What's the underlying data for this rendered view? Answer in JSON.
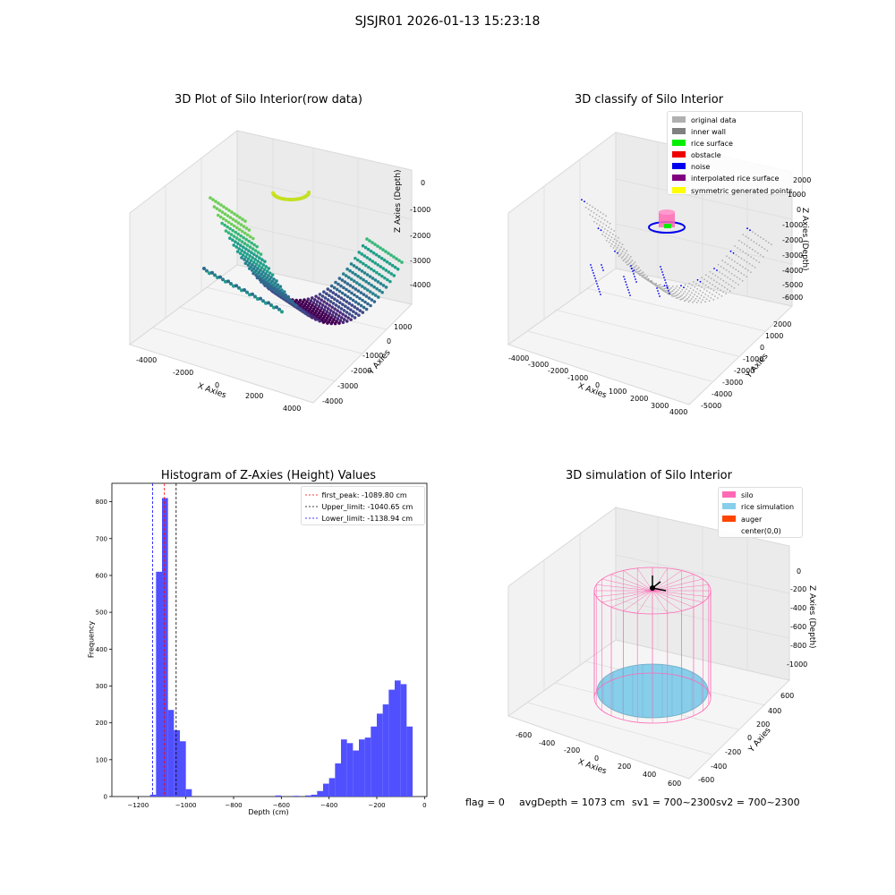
{
  "figure": {
    "suptitle": "SJSJR01 2026-01-13 15:23:18",
    "status": {
      "flag": "flag = 0",
      "avg": "avgDepth = 1073 cm",
      "sv1": "sv1 = 700~2300",
      "sv2": "sv2 = 700~2300"
    }
  },
  "chart_data": [
    {
      "type": "scatter3d",
      "title": "3D Plot of Silo Interior(row data)",
      "xlabel": "X Axies",
      "ylabel": "Y Axies",
      "zlabel": "Z Axies (Depth)",
      "x_ticks": [
        "-4000",
        "-2000",
        "0",
        "2000",
        "4000"
      ],
      "y_ticks": [
        "1000",
        "0",
        "-1000",
        "-2000",
        "-3000",
        "-4000"
      ],
      "z_ticks": [
        "0",
        "-1000",
        "-2000",
        "-3000",
        "-4000"
      ],
      "colormap": "viridis"
    },
    {
      "type": "scatter3d",
      "title": "3D classify of Silo Interior",
      "xlabel": "X Axies",
      "ylabel": "Y Axies",
      "zlabel": "Z Axies (Depth)",
      "x_ticks": [
        "-4000",
        "-3000",
        "-2000",
        "-1000",
        "0",
        "1000",
        "2000",
        "3000",
        "4000"
      ],
      "y_ticks": [
        "2000",
        "1000",
        "0",
        "-1000",
        "-2000",
        "-3000",
        "-4000",
        "-5000"
      ],
      "z_ticks": [
        "2000",
        "1000",
        "0",
        "-1000",
        "-2000",
        "-3000",
        "-4000",
        "-5000",
        "-6000"
      ],
      "legend": [
        {
          "label": "original data",
          "color": "#b0b0b0"
        },
        {
          "label": "inner wall",
          "color": "#808080"
        },
        {
          "label": "rice surface",
          "color": "#00ee00"
        },
        {
          "label": "obstacle",
          "color": "#ee0000"
        },
        {
          "label": "noise",
          "color": "#0000ee"
        },
        {
          "label": "interpolated rice surface",
          "color": "#800080"
        },
        {
          "label": "symmetric generated points",
          "color": "#ffff00"
        }
      ],
      "legend_position": "upper right"
    },
    {
      "type": "histogram",
      "title": "Histogram of Z-Axies (Height) Values",
      "xlabel": "Depth (cm)",
      "ylabel": "Frequency",
      "xlim": [
        -1310,
        10
      ],
      "ylim": [
        0,
        850
      ],
      "x_ticks": [
        -1200,
        -1000,
        -800,
        -600,
        -400,
        -200,
        0
      ],
      "y_ticks": [
        0,
        100,
        200,
        300,
        400,
        500,
        600,
        700,
        800
      ],
      "bin_width": 25,
      "bar_color": "#5050ff",
      "bins": [
        {
          "x0": -1150,
          "count": 5
        },
        {
          "x0": -1125,
          "count": 610
        },
        {
          "x0": -1100,
          "count": 810
        },
        {
          "x0": -1075,
          "count": 235
        },
        {
          "x0": -1050,
          "count": 180
        },
        {
          "x0": -1025,
          "count": 150
        },
        {
          "x0": -1000,
          "count": 20
        },
        {
          "x0": -625,
          "count": 3
        },
        {
          "x0": -550,
          "count": 2
        },
        {
          "x0": -500,
          "count": 3
        },
        {
          "x0": -475,
          "count": 5
        },
        {
          "x0": -450,
          "count": 15
        },
        {
          "x0": -425,
          "count": 35
        },
        {
          "x0": -400,
          "count": 50
        },
        {
          "x0": -375,
          "count": 90
        },
        {
          "x0": -350,
          "count": 155
        },
        {
          "x0": -325,
          "count": 145
        },
        {
          "x0": -300,
          "count": 125
        },
        {
          "x0": -275,
          "count": 155
        },
        {
          "x0": -250,
          "count": 160
        },
        {
          "x0": -225,
          "count": 190
        },
        {
          "x0": -200,
          "count": 225
        },
        {
          "x0": -175,
          "count": 250
        },
        {
          "x0": -150,
          "count": 290
        },
        {
          "x0": -125,
          "count": 315
        },
        {
          "x0": -100,
          "count": 305
        },
        {
          "x0": -75,
          "count": 190
        }
      ],
      "vlines": [
        {
          "x": -1089.8,
          "color": "#ff0000",
          "label": "first_peak: -1089.80 cm"
        },
        {
          "x": -1040.65,
          "color": "#000000",
          "label": "Upper_limit: -1040.65 cm"
        },
        {
          "x": -1138.94,
          "color": "#0000ff",
          "label": "Lower_limit: -1138.94 cm"
        }
      ],
      "legend_position": "upper right"
    },
    {
      "type": "surface3d",
      "title": "3D simulation of Silo Interior",
      "xlabel": "X Axies",
      "ylabel": "Y Axies",
      "zlabel": "Z Axies (Depth)",
      "x_ticks": [
        "-600",
        "-400",
        "-200",
        "0",
        "200",
        "400",
        "600"
      ],
      "y_ticks": [
        "600",
        "400",
        "200",
        "0",
        "-200",
        "-400",
        "-600"
      ],
      "z_ticks": [
        "0",
        "-200",
        "-400",
        "-600",
        "-800",
        "-1000"
      ],
      "legend": [
        {
          "label": "silo",
          "color": "#ff69b4"
        },
        {
          "label": "rice simulation",
          "color": "#87ceeb"
        },
        {
          "label": "auger",
          "color": "#ff4500"
        },
        {
          "label": "center(0,0)",
          "color": ""
        }
      ],
      "legend_position": "upper right"
    }
  ]
}
